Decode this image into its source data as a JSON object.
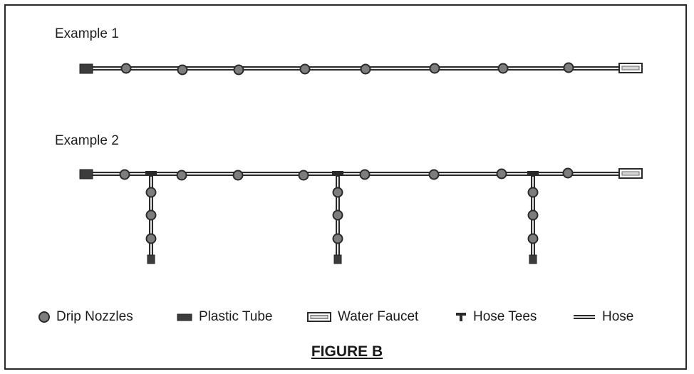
{
  "examples": [
    {
      "label": "Example 1",
      "nozzle_count": 8,
      "branches": 0
    },
    {
      "label": "Example 2",
      "main_nozzle_count": 8,
      "branches": 3,
      "nozzles_per_branch": 3
    }
  ],
  "legend": {
    "drip_nozzles": "Drip Nozzles",
    "plastic_tube": "Plastic Tube",
    "water_faucet": "Water Faucet",
    "hose_tees": "Hose Tees",
    "hose": "Hose"
  },
  "figure_title": "FIGURE B",
  "colors": {
    "line": "#2b2b2b",
    "nozzle_fill": "#7d7d7d",
    "tube_fill": "#3c3c3c",
    "hose_inner": "#e6e6e6",
    "faucet_fill": "#d8d8d8"
  },
  "icons": [
    "drip-nozzle-icon",
    "plastic-tube-icon",
    "water-faucet-icon",
    "hose-tee-icon",
    "hose-icon"
  ]
}
